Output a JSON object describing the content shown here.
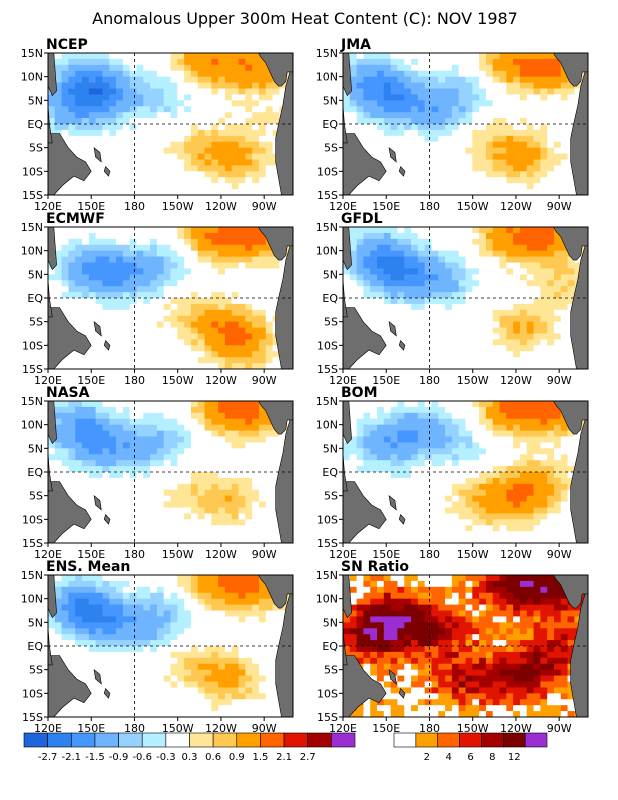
{
  "title": "Anomalous Upper 300m Heat Content (C): NOV 1987",
  "colors": {
    "land": "#6e6e6e",
    "frame": "#000000",
    "anomaly_scale": [
      "#1e64dc",
      "#2d82f0",
      "#4696ff",
      "#6eb4ff",
      "#96d2ff",
      "#b4f0ff",
      "#ffffff",
      "#ffe696",
      "#ffc850",
      "#ffa000",
      "#ff6400",
      "#e11400",
      "#a50000",
      "#9b2dd2"
    ],
    "ratio_scale": [
      "#ffffff",
      "#ffa000",
      "#ff6400",
      "#e11400",
      "#a50000",
      "#7d0000",
      "#9b2dd2"
    ]
  },
  "chart_data": [
    {
      "type": "heatmap",
      "name": "NCEP",
      "x_ticks": [
        "120E",
        "150E",
        "180",
        "150W",
        "120W",
        "90W"
      ],
      "y_ticks": [
        "15N",
        "10N",
        "5N",
        "EQ",
        "5S",
        "10S",
        "15S"
      ],
      "xlim": [
        120,
        290
      ],
      "ylim": [
        -15,
        15
      ],
      "features": [
        {
          "lon": 160,
          "lat": 6,
          "value": -1.6
        },
        {
          "lon": 145,
          "lat": 9,
          "value": -1.3
        },
        {
          "lon": 135,
          "lat": 3,
          "value": -1.0
        },
        {
          "lon": 200,
          "lat": 6,
          "value": -0.7
        },
        {
          "lon": 230,
          "lat": 13,
          "value": 1.3
        },
        {
          "lon": 265,
          "lat": 12,
          "value": 1.4
        },
        {
          "lon": 250,
          "lat": -7,
          "value": 1.0
        },
        {
          "lon": 225,
          "lat": -5,
          "value": 0.6
        },
        {
          "lon": 270,
          "lat": 1,
          "value": 0.3
        }
      ]
    },
    {
      "type": "heatmap",
      "name": "JMA",
      "x_ticks": [
        "120E",
        "150E",
        "180",
        "150W",
        "120W",
        "90W"
      ],
      "y_ticks": [
        "15N",
        "10N",
        "5N",
        "EQ",
        "5S",
        "10S",
        "15S"
      ],
      "xlim": [
        120,
        290
      ],
      "ylim": [
        -15,
        15
      ],
      "features": [
        {
          "lon": 155,
          "lat": 5,
          "value": -1.5
        },
        {
          "lon": 140,
          "lat": 9,
          "value": -1.3
        },
        {
          "lon": 185,
          "lat": 3,
          "value": -1.1
        },
        {
          "lon": 205,
          "lat": 8,
          "value": -0.6
        },
        {
          "lon": 235,
          "lat": 13,
          "value": 1.2
        },
        {
          "lon": 265,
          "lat": 12,
          "value": 1.5
        },
        {
          "lon": 245,
          "lat": -7,
          "value": 1.1
        },
        {
          "lon": 220,
          "lat": -4,
          "value": 0.5
        }
      ]
    },
    {
      "type": "heatmap",
      "name": "ECMWF",
      "x_ticks": [
        "120E",
        "150E",
        "180",
        "150W",
        "120W",
        "90W"
      ],
      "y_ticks": [
        "15N",
        "10N",
        "5N",
        "EQ",
        "5S",
        "10S",
        "15S"
      ],
      "xlim": [
        120,
        290
      ],
      "ylim": [
        -15,
        15
      ],
      "features": [
        {
          "lon": 150,
          "lat": 6,
          "value": -1.5
        },
        {
          "lon": 175,
          "lat": 5,
          "value": -1.2
        },
        {
          "lon": 200,
          "lat": 7,
          "value": -0.7
        },
        {
          "lon": 235,
          "lat": 13,
          "value": 1.4
        },
        {
          "lon": 265,
          "lat": 13,
          "value": 1.5
        },
        {
          "lon": 245,
          "lat": -6,
          "value": 1.0
        },
        {
          "lon": 255,
          "lat": -10,
          "value": 1.1
        },
        {
          "lon": 220,
          "lat": -4,
          "value": 0.6
        }
      ]
    },
    {
      "type": "heatmap",
      "name": "GFDL",
      "x_ticks": [
        "120E",
        "150E",
        "180",
        "150W",
        "120W",
        "90W"
      ],
      "y_ticks": [
        "15N",
        "10N",
        "5N",
        "EQ",
        "5S",
        "10S",
        "15S"
      ],
      "xlim": [
        120,
        290
      ],
      "ylim": [
        -15,
        15
      ],
      "features": [
        {
          "lon": 160,
          "lat": 5,
          "value": -1.7
        },
        {
          "lon": 145,
          "lat": 9,
          "value": -1.4
        },
        {
          "lon": 190,
          "lat": 4,
          "value": -1.0
        },
        {
          "lon": 235,
          "lat": 13,
          "value": 1.2
        },
        {
          "lon": 262,
          "lat": 13,
          "value": 1.5
        },
        {
          "lon": 245,
          "lat": -6,
          "value": 0.9
        },
        {
          "lon": 275,
          "lat": 3,
          "value": 0.6
        }
      ]
    },
    {
      "type": "heatmap",
      "name": "NASA",
      "x_ticks": [
        "120E",
        "150E",
        "180",
        "150W",
        "120W",
        "90W"
      ],
      "y_ticks": [
        "15N",
        "10N",
        "5N",
        "EQ",
        "5S",
        "10S",
        "15S"
      ],
      "xlim": [
        120,
        290
      ],
      "ylim": [
        -15,
        15
      ],
      "features": [
        {
          "lon": 155,
          "lat": 6,
          "value": -1.4
        },
        {
          "lon": 140,
          "lat": 10,
          "value": -1.2
        },
        {
          "lon": 185,
          "lat": 5,
          "value": -0.9
        },
        {
          "lon": 210,
          "lat": 8,
          "value": -0.5
        },
        {
          "lon": 240,
          "lat": 13,
          "value": 1.2
        },
        {
          "lon": 265,
          "lat": 13,
          "value": 1.3
        },
        {
          "lon": 245,
          "lat": -6,
          "value": 0.8
        },
        {
          "lon": 215,
          "lat": -4,
          "value": 0.4
        }
      ]
    },
    {
      "type": "heatmap",
      "name": "BOM",
      "x_ticks": [
        "120E",
        "150E",
        "180",
        "150W",
        "120W",
        "90W"
      ],
      "y_ticks": [
        "15N",
        "10N",
        "5N",
        "EQ",
        "5S",
        "10S",
        "15S"
      ],
      "xlim": [
        120,
        290
      ],
      "ylim": [
        -15,
        15
      ],
      "features": [
        {
          "lon": 150,
          "lat": 6,
          "value": -1.3
        },
        {
          "lon": 175,
          "lat": 9,
          "value": -1.0
        },
        {
          "lon": 200,
          "lat": 6,
          "value": -0.6
        },
        {
          "lon": 235,
          "lat": 13,
          "value": 1.4
        },
        {
          "lon": 265,
          "lat": 13,
          "value": 1.6
        },
        {
          "lon": 240,
          "lat": -6,
          "value": 1.1
        },
        {
          "lon": 255,
          "lat": -2,
          "value": 1.0
        },
        {
          "lon": 215,
          "lat": -6,
          "value": 0.7
        }
      ]
    },
    {
      "type": "heatmap",
      "name": "ENS. Mean",
      "x_ticks": [
        "120E",
        "150E",
        "180",
        "150W",
        "120W",
        "90W"
      ],
      "y_ticks": [
        "15N",
        "10N",
        "5N",
        "EQ",
        "5S",
        "10S",
        "15S"
      ],
      "xlim": [
        120,
        290
      ],
      "ylim": [
        -15,
        15
      ],
      "features": [
        {
          "lon": 155,
          "lat": 6,
          "value": -1.6
        },
        {
          "lon": 140,
          "lat": 9,
          "value": -1.4
        },
        {
          "lon": 185,
          "lat": 4,
          "value": -1.0
        },
        {
          "lon": 205,
          "lat": 8,
          "value": -0.6
        },
        {
          "lon": 235,
          "lat": 13,
          "value": 1.3
        },
        {
          "lon": 265,
          "lat": 13,
          "value": 1.5
        },
        {
          "lon": 245,
          "lat": -7,
          "value": 1.0
        },
        {
          "lon": 220,
          "lat": -4,
          "value": 0.5
        }
      ]
    },
    {
      "type": "heatmap",
      "name": "SN Ratio",
      "x_ticks": [
        "120E",
        "150E",
        "180",
        "150W",
        "120W",
        "90W"
      ],
      "y_ticks": [
        "15N",
        "10N",
        "5N",
        "EQ",
        "5S",
        "10S",
        "15S"
      ],
      "xlim": [
        120,
        290
      ],
      "ylim": [
        -15,
        15
      ],
      "features": [
        {
          "lon": 155,
          "lat": 6,
          "value": 9
        },
        {
          "lon": 140,
          "lat": 2,
          "value": 8
        },
        {
          "lon": 185,
          "lat": 3,
          "value": 7
        },
        {
          "lon": 235,
          "lat": 13,
          "value": 8
        },
        {
          "lon": 265,
          "lat": 12,
          "value": 9
        },
        {
          "lon": 245,
          "lat": -6,
          "value": 8
        },
        {
          "lon": 205,
          "lat": -7,
          "value": 6
        },
        {
          "lon": 270,
          "lat": 0,
          "value": 5
        }
      ]
    }
  ],
  "legend_anomaly": {
    "labels": [
      "-2.7",
      "-2.1",
      "-1.5",
      "-0.9",
      "-0.6",
      "-0.3",
      "0.3",
      "0.6",
      "0.9",
      "1.5",
      "2.1",
      "2.7"
    ],
    "thresholds": [
      -2.7,
      -2.1,
      -1.5,
      -0.9,
      -0.6,
      -0.3,
      0.3,
      0.6,
      0.9,
      1.5,
      2.1,
      2.7
    ]
  },
  "legend_ratio": {
    "labels": [
      "2",
      "4",
      "6",
      "8",
      "12"
    ],
    "thresholds": [
      1,
      2,
      4,
      6,
      8,
      12
    ]
  }
}
